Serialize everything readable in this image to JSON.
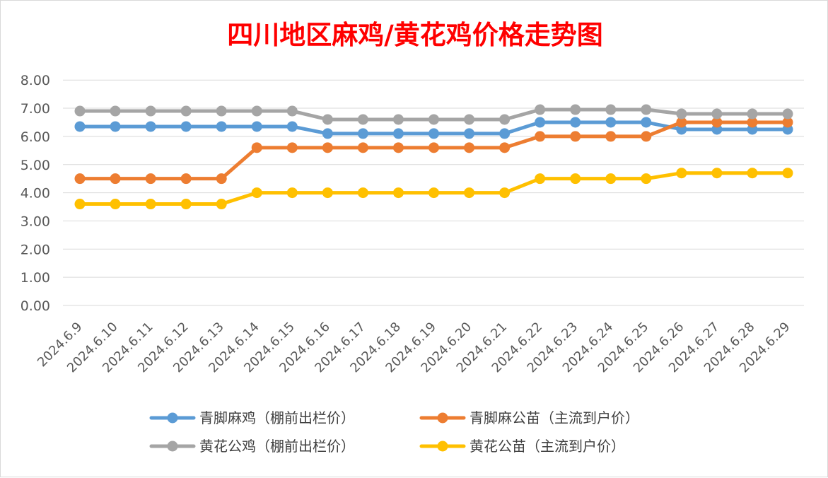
{
  "chart_data": {
    "type": "line",
    "title": "四川地区麻鸡/黄花鸡价格走势图",
    "xlabel": "",
    "ylabel": "",
    "ylim": [
      0,
      8
    ],
    "y_ticks": [
      "0.00",
      "1.00",
      "2.00",
      "3.00",
      "4.00",
      "5.00",
      "6.00",
      "7.00",
      "8.00"
    ],
    "grid": true,
    "legend_position": "bottom",
    "categories": [
      "2024.6.9",
      "2024.6.10",
      "2024.6.11",
      "2024.6.12",
      "2024.6.13",
      "2024.6.14",
      "2024.6.15",
      "2024.6.16",
      "2024.6.17",
      "2024.6.18",
      "2024.6.19",
      "2024.6.20",
      "2024.6.21",
      "2024.6.22",
      "2024.6.23",
      "2024.6.24",
      "2024.6.25",
      "2024.6.26",
      "2024.6.27",
      "2024.6.28",
      "2024.6.29"
    ],
    "series": [
      {
        "name": "青脚麻鸡（棚前出栏价）",
        "color": "#5b9bd5",
        "values": [
          6.35,
          6.35,
          6.35,
          6.35,
          6.35,
          6.35,
          6.35,
          6.1,
          6.1,
          6.1,
          6.1,
          6.1,
          6.1,
          6.5,
          6.5,
          6.5,
          6.5,
          6.25,
          6.25,
          6.25,
          6.25
        ]
      },
      {
        "name": "青脚麻公苗（主流到户价）",
        "color": "#ed7d31",
        "values": [
          4.5,
          4.5,
          4.5,
          4.5,
          4.5,
          5.6,
          5.6,
          5.6,
          5.6,
          5.6,
          5.6,
          5.6,
          5.6,
          6.0,
          6.0,
          6.0,
          6.0,
          6.5,
          6.5,
          6.5,
          6.5
        ]
      },
      {
        "name": "黄花公鸡（棚前出栏价）",
        "color": "#a5a5a5",
        "values": [
          6.9,
          6.9,
          6.9,
          6.9,
          6.9,
          6.9,
          6.9,
          6.6,
          6.6,
          6.6,
          6.6,
          6.6,
          6.6,
          6.95,
          6.95,
          6.95,
          6.95,
          6.8,
          6.8,
          6.8,
          6.8
        ]
      },
      {
        "name": "黄花公苗（主流到户价）",
        "color": "#ffc000",
        "values": [
          3.6,
          3.6,
          3.6,
          3.6,
          3.6,
          4.0,
          4.0,
          4.0,
          4.0,
          4.0,
          4.0,
          4.0,
          4.0,
          4.5,
          4.5,
          4.5,
          4.5,
          4.7,
          4.7,
          4.7,
          4.7
        ]
      }
    ]
  }
}
